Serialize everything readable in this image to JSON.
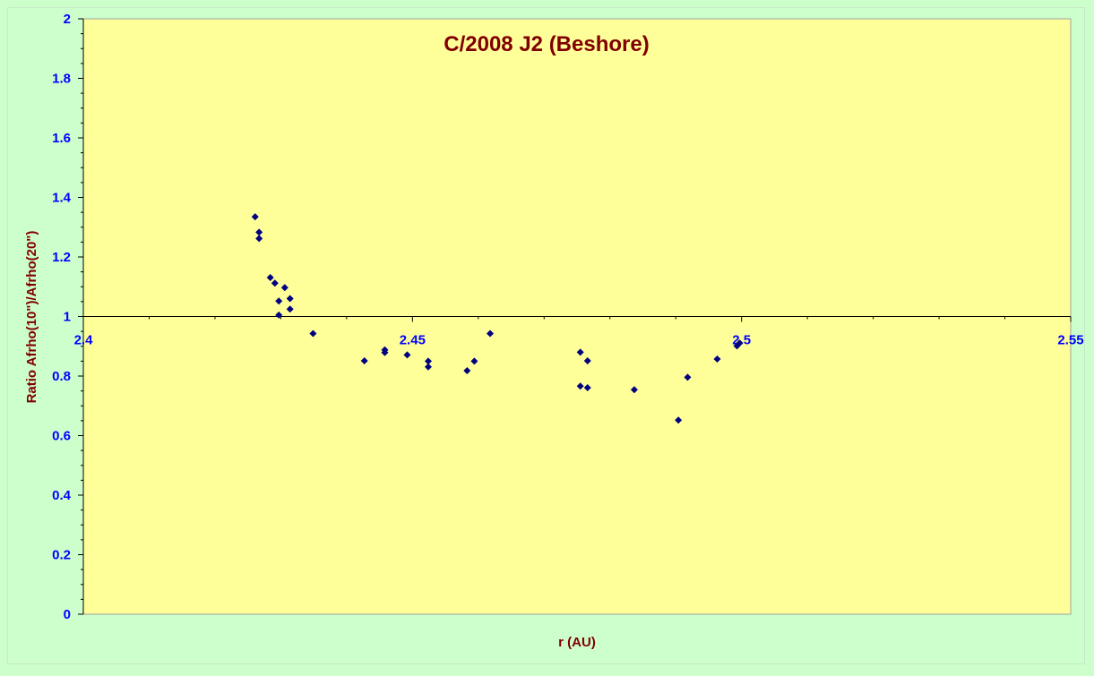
{
  "chart_data": {
    "type": "scatter",
    "title": "C/2008 J2 (Beshore)",
    "xlabel": "r (AU)",
    "ylabel": "Ratio Afrho(10\")/Afrho(20\")",
    "xlim": [
      2.4,
      2.55
    ],
    "ylim": [
      0,
      2
    ],
    "x_ticks": [
      "2.4",
      "2.45",
      "2.5",
      "2.55"
    ],
    "y_ticks": [
      "0",
      "0.2",
      "0.4",
      "0.6",
      "0.8",
      "1",
      "1.2",
      "1.4",
      "1.6",
      "1.8",
      "2"
    ],
    "x_axis_crosses_at_y": 1,
    "grid": false,
    "legend": "none",
    "series": [
      {
        "x": [
          2.4261,
          2.4267,
          2.4267,
          2.4284,
          2.4291,
          2.4297,
          2.4306,
          2.4314,
          2.4314,
          2.4297,
          2.4349,
          2.4427,
          2.4458,
          2.4458,
          2.4492,
          2.4524,
          2.4524,
          2.4583,
          2.4594,
          2.4618,
          2.4755,
          2.4755,
          2.4766,
          2.4766,
          2.4837,
          2.4904,
          2.4918,
          2.4963,
          2.4993,
          2.4997
        ],
        "y": [
          1.335,
          1.283,
          1.262,
          1.131,
          1.112,
          1.052,
          1.097,
          1.06,
          1.025,
          1.005,
          0.943,
          0.851,
          0.879,
          0.888,
          0.871,
          0.85,
          0.831,
          0.818,
          0.85,
          0.943,
          0.88,
          0.766,
          0.851,
          0.761,
          0.754,
          0.652,
          0.796,
          0.857,
          0.901,
          0.911
        ]
      }
    ],
    "colors": {
      "background": "#ccffcc",
      "plot_area": "#ffff99",
      "title": "#800000",
      "axis_title": "#800000",
      "tick_label": "#0000ff",
      "marker": "#000080",
      "axis_line": "#000000"
    }
  }
}
